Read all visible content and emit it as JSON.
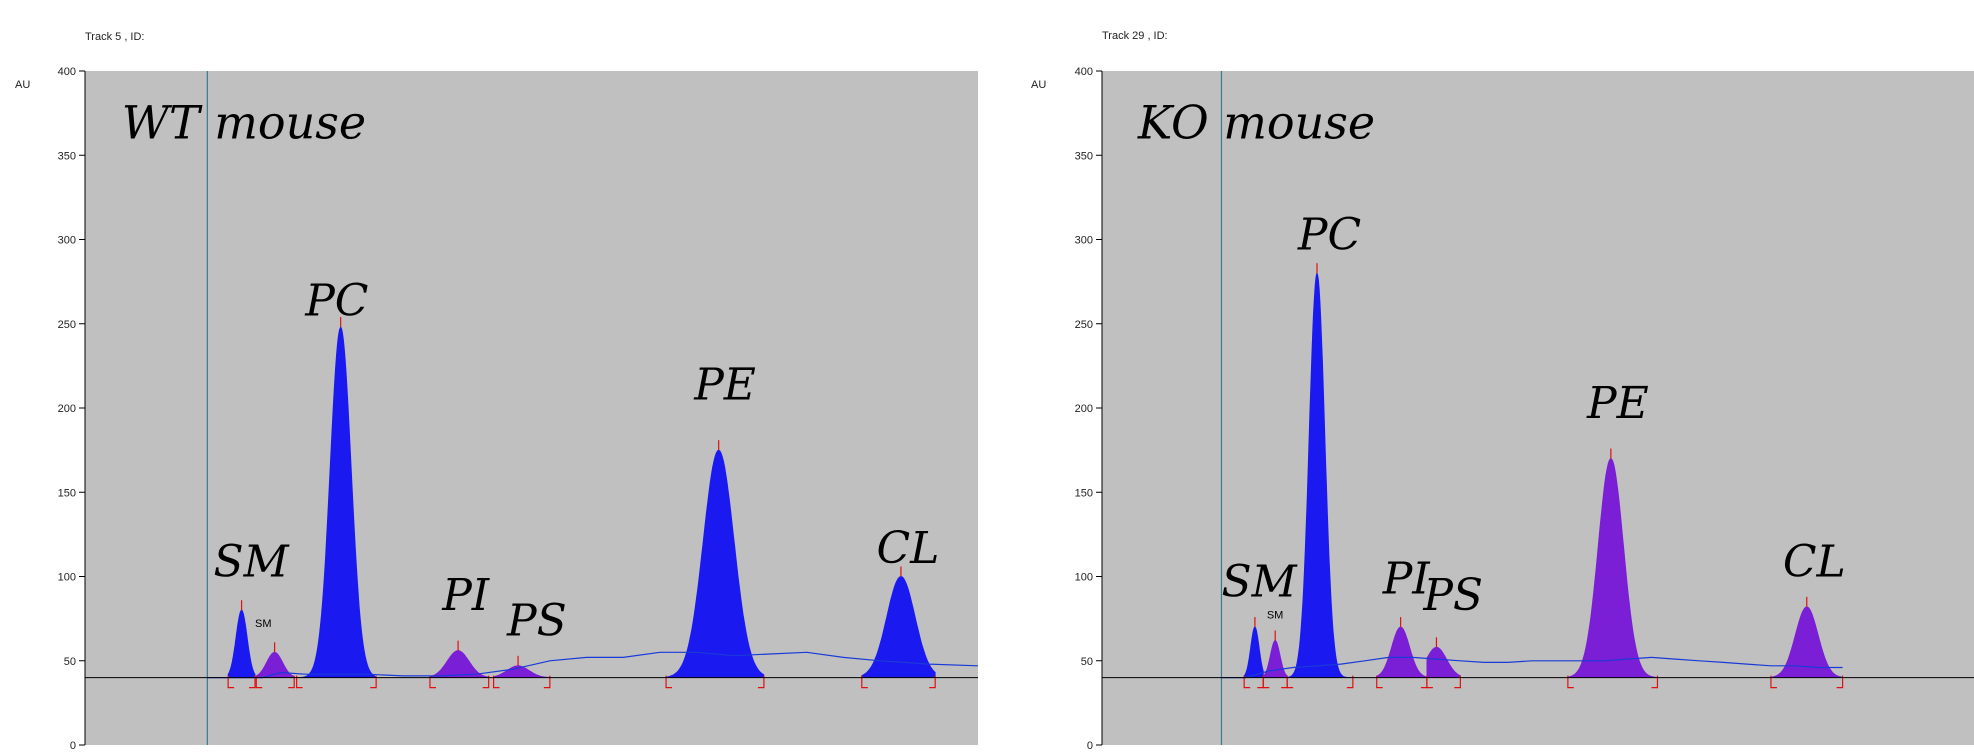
{
  "chart_data": [
    {
      "type": "area",
      "track_label": "Track  5 , ID:",
      "title": "WT mouse",
      "ylabel": "AU",
      "ylim": [
        0,
        400
      ],
      "yticks": [
        "0",
        "50",
        "100",
        "150",
        "200",
        "250",
        "300",
        "350",
        "400"
      ],
      "baseline": 40,
      "x_start": 0.11,
      "x_end": 0.84,
      "vertical_marker_x": 0.21,
      "trace": [
        [
          0.21,
          40
        ],
        [
          0.255,
          40
        ],
        [
          0.27,
          43
        ],
        [
          0.29,
          42
        ],
        [
          0.31,
          42
        ],
        [
          0.34,
          42
        ],
        [
          0.37,
          41
        ],
        [
          0.4,
          41
        ],
        [
          0.43,
          42
        ],
        [
          0.46,
          45
        ],
        [
          0.49,
          50
        ],
        [
          0.52,
          52
        ],
        [
          0.55,
          52
        ],
        [
          0.58,
          55
        ],
        [
          0.61,
          55
        ],
        [
          0.64,
          53
        ],
        [
          0.67,
          54
        ],
        [
          0.7,
          55
        ],
        [
          0.73,
          52
        ],
        [
          0.76,
          50
        ],
        [
          0.8,
          48
        ],
        [
          0.84,
          47
        ]
      ],
      "peaks": [
        {
          "label": "SM",
          "center": 0.238,
          "width": 0.0045,
          "height": 80,
          "fill": "#1a1af0",
          "left": 0.227,
          "right": 0.249
        },
        {
          "label": "SM",
          "center": 0.265,
          "width": 0.0065,
          "height": 55,
          "fill": "#7a1fd6",
          "left": 0.25,
          "right": 0.281
        },
        {
          "label": "PC",
          "center": 0.319,
          "width": 0.0085,
          "height": 248,
          "fill": "#1a1af0",
          "left": 0.283,
          "right": 0.348
        },
        {
          "label": "PI",
          "center": 0.415,
          "width": 0.009,
          "height": 56,
          "fill": "#7a1fd6",
          "left": 0.392,
          "right": 0.44
        },
        {
          "label": "PS",
          "center": 0.464,
          "width": 0.009,
          "height": 47,
          "fill": "#7a1fd6",
          "left": 0.444,
          "right": 0.49
        },
        {
          "label": "PE",
          "center": 0.628,
          "width": 0.0125,
          "height": 175,
          "fill": "#1a1af0",
          "left": 0.585,
          "right": 0.665
        },
        {
          "label": "CL",
          "center": 0.777,
          "width": 0.0115,
          "height": 100,
          "fill": "#1a1af0",
          "left": 0.745,
          "right": 0.805
        }
      ],
      "annotations": [
        {
          "text": "SM",
          "x": 0.215,
          "y": 100
        },
        {
          "text": "PC",
          "x": 0.29,
          "y": 255
        },
        {
          "text": "PI",
          "x": 0.402,
          "y": 80
        },
        {
          "text": "PS",
          "x": 0.455,
          "y": 65
        },
        {
          "text": "PE",
          "x": 0.608,
          "y": 205
        },
        {
          "text": "CL",
          "x": 0.757,
          "y": 108
        }
      ],
      "small_annotation": {
        "text": "SM",
        "x": 0.249,
        "y": 70
      },
      "title_pos": {
        "x": 0.14,
        "y": 360
      }
    },
    {
      "type": "area",
      "track_label": "Track  29 , ID:",
      "title": "KO mouse",
      "ylabel": "AU",
      "ylim": [
        0,
        400
      ],
      "yticks": [
        "0",
        "50",
        "100",
        "150",
        "200",
        "250",
        "300",
        "350",
        "400"
      ],
      "baseline": 40,
      "x_start": 0.11,
      "x_end": 0.73,
      "vertical_marker_x": 0.21,
      "trace": [
        [
          0.21,
          40
        ],
        [
          0.23,
          40
        ],
        [
          0.25,
          44
        ],
        [
          0.27,
          46
        ],
        [
          0.29,
          47
        ],
        [
          0.31,
          48
        ],
        [
          0.33,
          50
        ],
        [
          0.35,
          52
        ],
        [
          0.37,
          52
        ],
        [
          0.39,
          51
        ],
        [
          0.41,
          50
        ],
        [
          0.43,
          49
        ],
        [
          0.45,
          49
        ],
        [
          0.47,
          50
        ],
        [
          0.49,
          50
        ],
        [
          0.51,
          50
        ],
        [
          0.53,
          50
        ],
        [
          0.55,
          51
        ],
        [
          0.57,
          52
        ],
        [
          0.59,
          51
        ],
        [
          0.61,
          50
        ],
        [
          0.63,
          49
        ],
        [
          0.65,
          48
        ],
        [
          0.67,
          47
        ],
        [
          0.69,
          47
        ],
        [
          0.71,
          46
        ],
        [
          0.73,
          46
        ]
      ],
      "peaks": [
        {
          "label": "SM",
          "center": 0.238,
          "width": 0.0035,
          "height": 70,
          "fill": "#1a1af0",
          "left": 0.229,
          "right": 0.245
        },
        {
          "label": "SM",
          "center": 0.255,
          "width": 0.004,
          "height": 62,
          "fill": "#7a1fd6",
          "left": 0.245,
          "right": 0.265
        },
        {
          "label": "PC",
          "center": 0.29,
          "width": 0.0065,
          "height": 280,
          "fill": "#1a1af0",
          "left": 0.265,
          "right": 0.32
        },
        {
          "label": "PI",
          "center": 0.36,
          "width": 0.0075,
          "height": 70,
          "fill": "#7a1fd6",
          "left": 0.34,
          "right": 0.382
        },
        {
          "label": "PS",
          "center": 0.39,
          "width": 0.0085,
          "height": 58,
          "fill": "#7a1fd6",
          "left": 0.382,
          "right": 0.41
        },
        {
          "label": "PE",
          "center": 0.536,
          "width": 0.0105,
          "height": 170,
          "fill": "#7a1fd6",
          "left": 0.5,
          "right": 0.575
        },
        {
          "label": "CL",
          "center": 0.7,
          "width": 0.0095,
          "height": 82,
          "fill": "#7a1fd6",
          "left": 0.67,
          "right": 0.73
        }
      ],
      "annotations": [
        {
          "text": "SM",
          "x": 0.21,
          "y": 88
        },
        {
          "text": "PC",
          "x": 0.274,
          "y": 294
        },
        {
          "text": "PI",
          "x": 0.345,
          "y": 90
        },
        {
          "text": "PS",
          "x": 0.379,
          "y": 80
        },
        {
          "text": "PE",
          "x": 0.516,
          "y": 194
        },
        {
          "text": "CL",
          "x": 0.68,
          "y": 100
        }
      ],
      "small_annotation": {
        "text": "SM",
        "x": 0.248,
        "y": 75
      },
      "title_pos": {
        "x": 0.14,
        "y": 360
      }
    }
  ]
}
